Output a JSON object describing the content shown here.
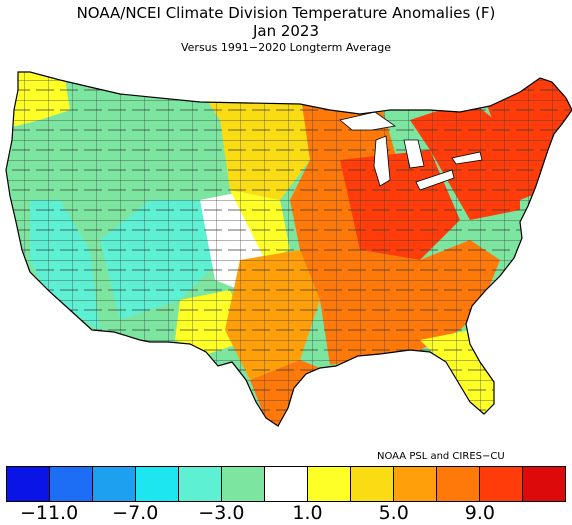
{
  "title": "NOAA/NCEI Climate Division Temperature Anomalies (F)",
  "period": "Jan 2023",
  "subtitle": "Versus 1991−2020 Longterm Average",
  "credit": "NOAA PSL and CIRES−CU",
  "legend": {
    "colors": [
      "#0a14e6",
      "#1e6ef5",
      "#1ea0f0",
      "#1ee6f0",
      "#5ef0d2",
      "#7ce6a0",
      "#ffffff",
      "#ffff28",
      "#fadc14",
      "#ffa00a",
      "#ff780a",
      "#ff3c0a",
      "#dc0a0a"
    ],
    "ticks": [
      {
        "label": "−11.0",
        "index": 0
      },
      {
        "label": "−7.0",
        "index": 2
      },
      {
        "label": "−3.0",
        "index": 4
      },
      {
        "label": "1.0",
        "index": 6
      },
      {
        "label": "5.0",
        "index": 8
      },
      {
        "label": "9.0",
        "index": 10
      }
    ]
  },
  "regions": {
    "pacific_nw_coast": "#ffff28",
    "west_coast": "#7ce6a0",
    "california_inland": "#5ef0d2",
    "great_basin": "#7ce6a0",
    "four_corners": "#5ef0d2",
    "rockies": "#7ce6a0",
    "high_plains": "#ffffff",
    "northern_plains": "#ffff28",
    "upper_midwest": "#fadc14",
    "southern_plains": "#ffa00a",
    "texas_coast": "#ff780a",
    "midwest": "#ff780a",
    "ohio_valley": "#ff3c0a",
    "southeast": "#ff780a",
    "florida": "#ffff28",
    "appalachia_northeast": "#ff3c0a",
    "new_england": "#ff3c0a"
  }
}
